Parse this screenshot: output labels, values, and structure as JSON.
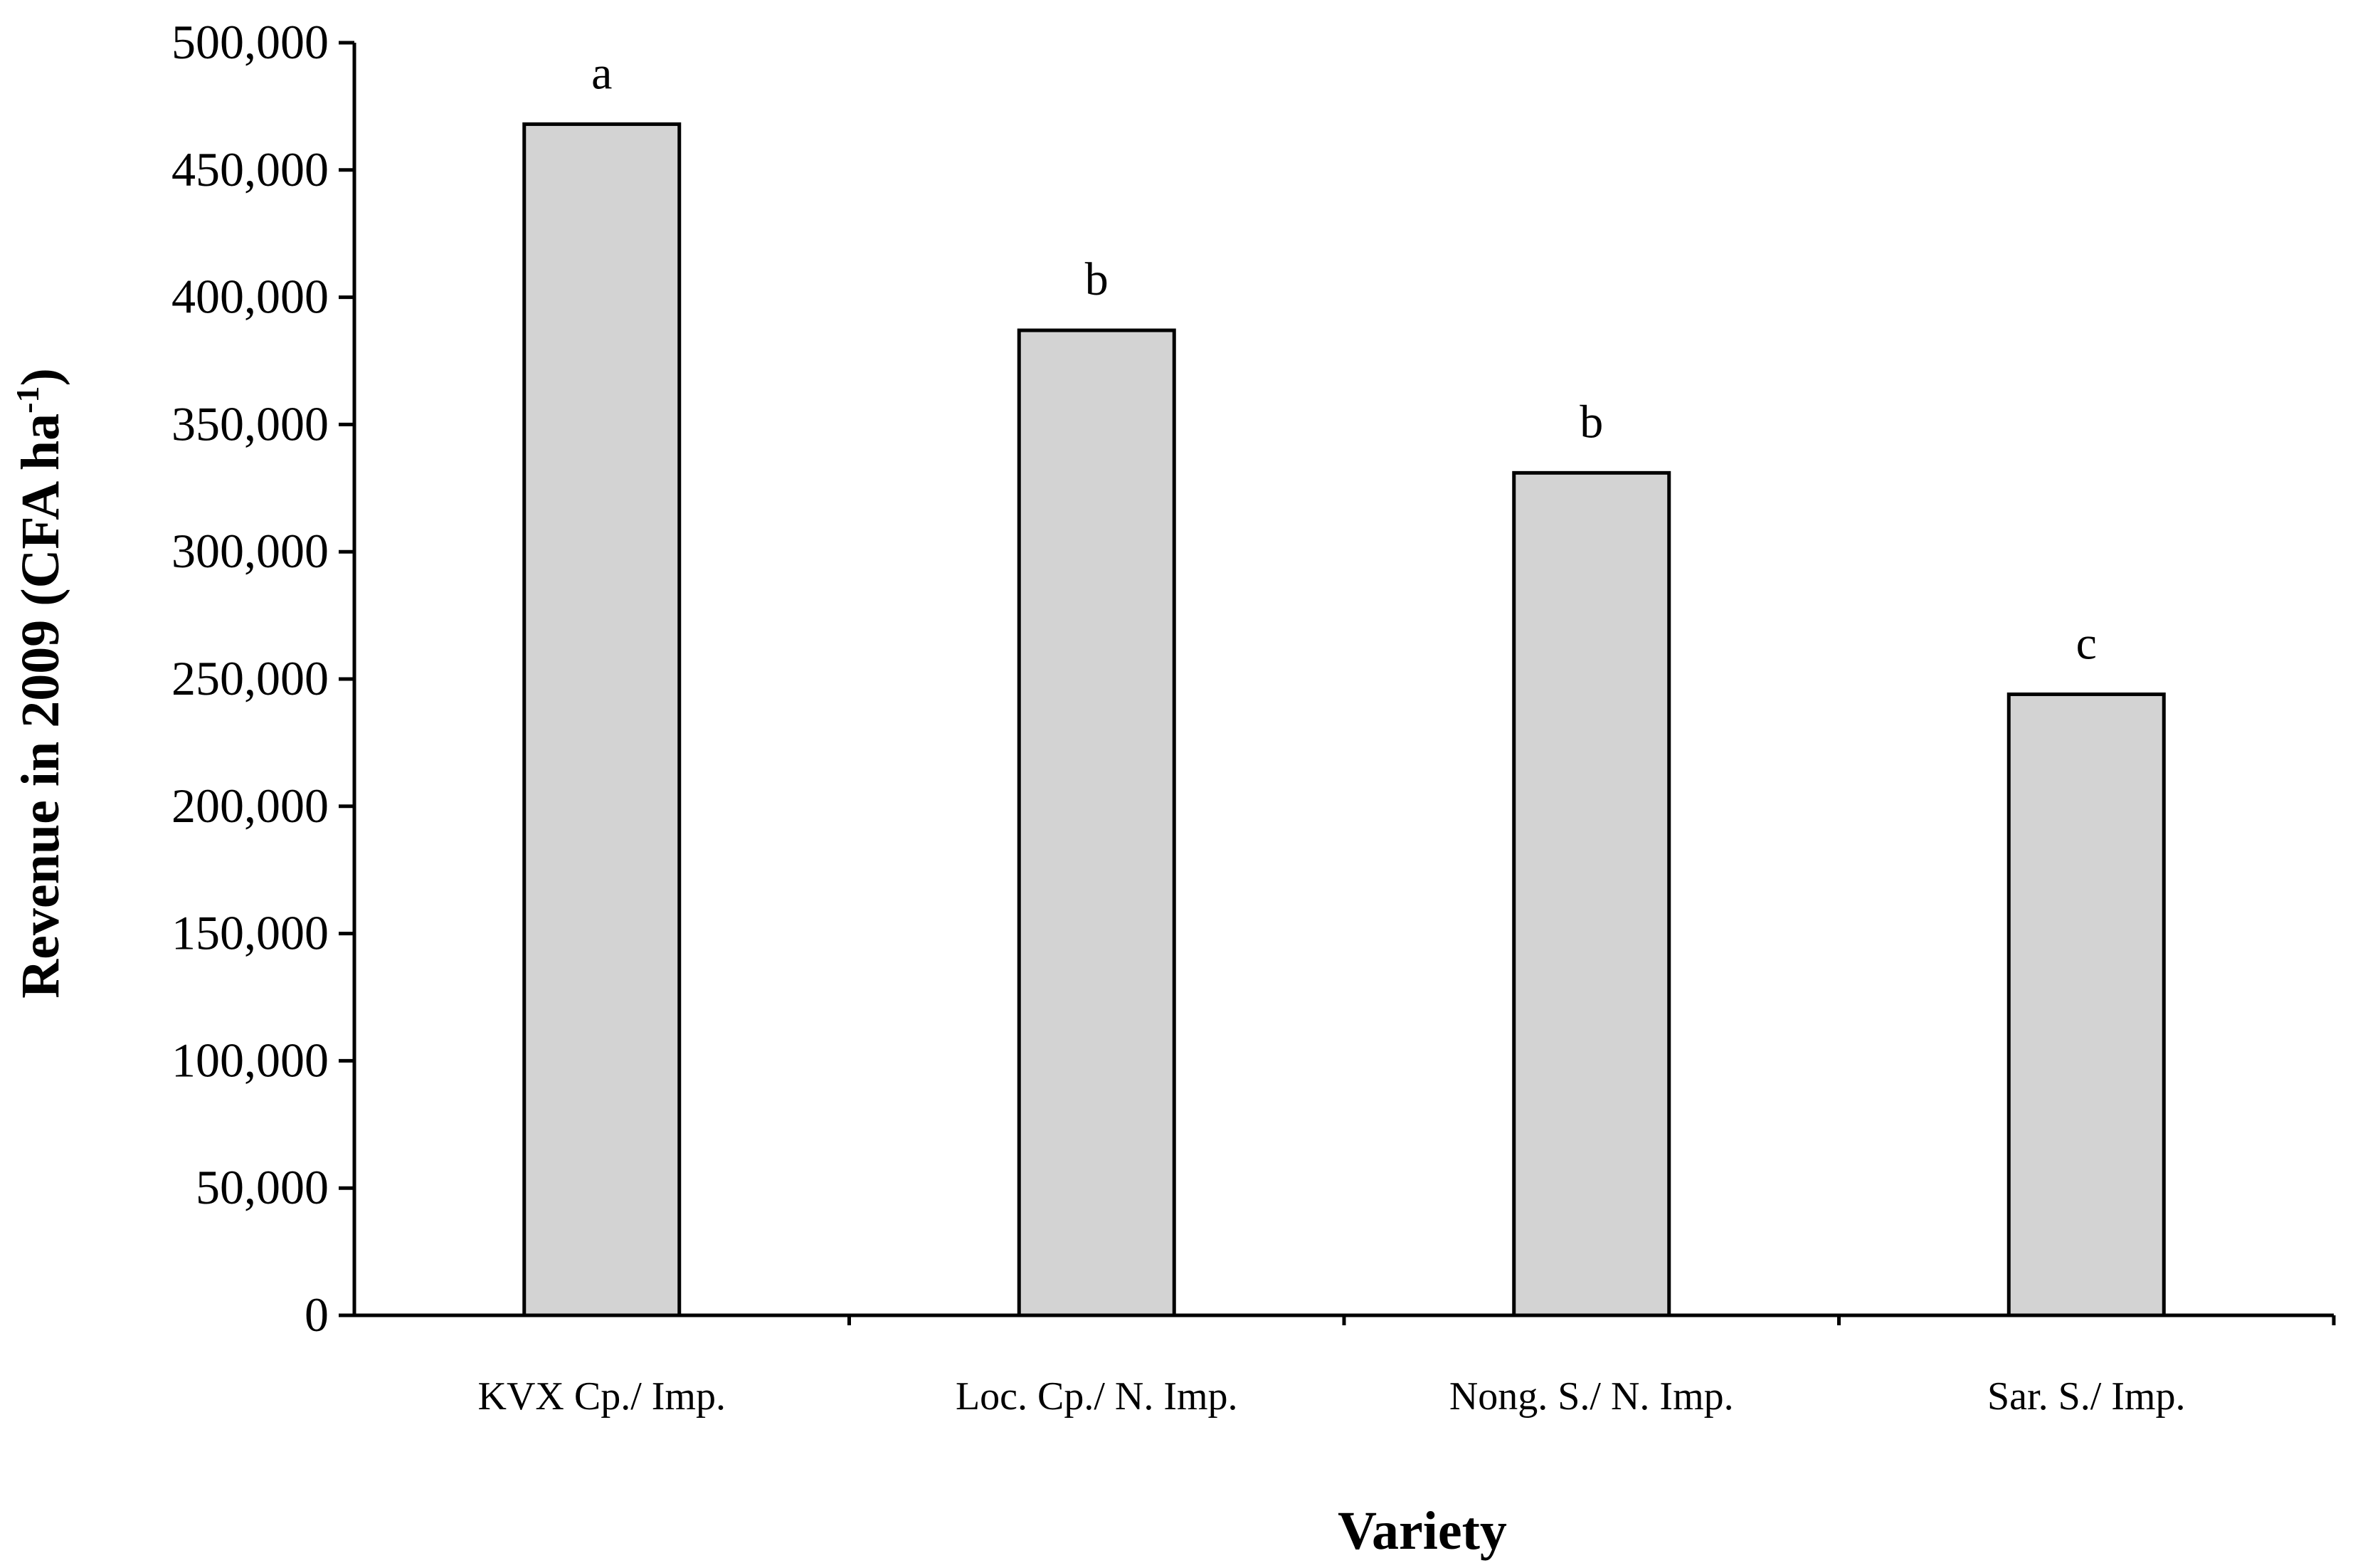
{
  "chart_data": {
    "type": "bar",
    "title": "",
    "xlabel": "Variety",
    "ylabel_main": "Revenue in 2009 (CFA ha",
    "ylabel_sup": "-1",
    "ylabel_end": ")",
    "categories": [
      "KVX Cp./ Imp.",
      "Loc. Cp./ N. Imp.",
      "Nong. S./ N. Imp.",
      "Sar. S./ Imp."
    ],
    "values": [
      468000,
      387000,
      331000,
      244000
    ],
    "significance_letters": [
      "a",
      "b",
      "b",
      "c"
    ],
    "ylim": [
      0,
      500000
    ],
    "yticks": [
      0,
      50000,
      100000,
      150000,
      200000,
      250000,
      300000,
      350000,
      400000,
      450000,
      500000
    ],
    "ytick_labels": [
      "0",
      "50,000",
      "100,000",
      "150,000",
      "200,000",
      "250,000",
      "300,000",
      "350,000",
      "400,000",
      "450,000",
      "500,000"
    ],
    "bar_color": "#d3d3d3",
    "grid": false,
    "legend": "none"
  }
}
